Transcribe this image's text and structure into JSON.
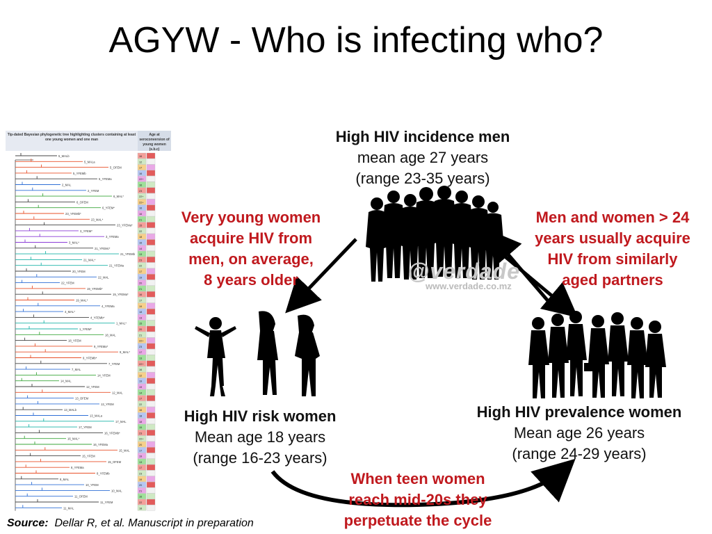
{
  "slide": {
    "title": "AGYW - Who is infecting who?"
  },
  "men": {
    "heading": "High HIV incidence men",
    "line1": "mean age 27 years",
    "line2": "(range 23-35 years)"
  },
  "risk_women": {
    "heading": "High HIV risk women",
    "line1": "Mean age 18 years",
    "line2": "(range 16-23 years)"
  },
  "prevalence_women": {
    "heading": "High HIV prevalence women",
    "line1": "Mean age 26 years",
    "line2": "(range 24-29 years)"
  },
  "annotations": {
    "left": [
      "Very young women",
      "acquire HIV from",
      "men, on average,",
      "8 years older"
    ],
    "right": [
      "Men and women > 24",
      "years usually acquire",
      "HIV from similarly",
      "aged partners"
    ],
    "bottom": [
      "When teen women",
      "reach mid-20s they",
      "perpetuate the cycle"
    ]
  },
  "tree": {
    "header": "Tip-dated Bayesian phylogenetic tree highlighting clusters containing at least one young women and one man",
    "age_header": "Age at seroconversion of young women (s.b.c)",
    "leaf_labels": [
      "5_MALb",
      "5_MALa",
      "5_OFEM",
      "5_YFEMb",
      "5_YFEMa",
      "2_MAL",
      "2_YFEM",
      "6_MAL*",
      "6_OFEM",
      "6_YFEM*",
      "23_YFEMb*",
      "23_MAL*",
      "23_YFEMa*",
      "3_YFEM*",
      "3_YFEMa",
      "3_MAL*",
      "21_YFEMc*",
      "21_YFEMb",
      "21_MAL*",
      "21_YFEMa",
      "20_YFEM",
      "22_MAL",
      "22_YFEM",
      "19_YFEMb*",
      "19_YFEMa*",
      "19_MAL*",
      "4_YFEMa",
      "4_MAL*",
      "4_YFEMb*",
      "1_MAL*",
      "1_YFEM*",
      "18_MAL",
      "18_YFEM",
      "9_YFEMa*",
      "9_MAL*",
      "9_YFEMb*",
      "7_YFEM",
      "7_MAL",
      "14_YFEM",
      "14_MAL",
      "12_YFEM",
      "12_MAL",
      "13_OFEM",
      "13_YFEM",
      "13_MALb",
      "13_MALa",
      "17_MAL",
      "17_YFEM",
      "16_YFEMb*",
      "16_MAL*",
      "16_YFEMa",
      "15_MAL",
      "15_YFEM",
      "15_OFEM",
      "8_YFEMa",
      "8_YFEMb",
      "8_MAL",
      "10_YFEM",
      "10_MAL",
      "11_OFEM",
      "11_YFEM",
      "11_MAL"
    ],
    "age_cells": [
      "16",
      "12",
      "17",
      "16",
      "22+",
      "16",
      "23",
      "22+",
      "22+",
      "16",
      "16",
      "21",
      "15",
      "22",
      "18",
      "16",
      "14",
      "13",
      "23",
      "22",
      "17",
      "19",
      "20",
      "21",
      "16",
      "17",
      "19",
      "18",
      "13",
      "15",
      "20",
      "21",
      "22+",
      "23",
      "17",
      "13",
      "22+",
      "16",
      "12",
      "19",
      "19",
      "14",
      "17",
      "22",
      "16",
      "18",
      "18",
      "15",
      "23",
      "22+",
      "20",
      "17",
      "19",
      "13",
      "17",
      "23",
      "19",
      "20",
      "21",
      "16",
      "22",
      "18"
    ]
  },
  "source": {
    "label": "Source:",
    "text": "Dellar R, et al. Manuscript in preparation"
  },
  "watermark": {
    "brand": "@verdade",
    "url": "www.verdade.co.mz"
  },
  "colors": {
    "annotation_red": "#c0191e",
    "arrow": "#000000",
    "silhouette": "#000000"
  },
  "chart_data": {
    "type": "table",
    "title": "",
    "clusters": [
      {
        "name": "High HIV incidence men",
        "mean_age": 27,
        "age_range": [
          23,
          35
        ]
      },
      {
        "name": "High HIV risk women",
        "mean_age": 18,
        "age_range": [
          16,
          23
        ]
      },
      {
        "name": "High HIV prevalence women",
        "mean_age": 26,
        "age_range": [
          24,
          29
        ]
      }
    ]
  }
}
